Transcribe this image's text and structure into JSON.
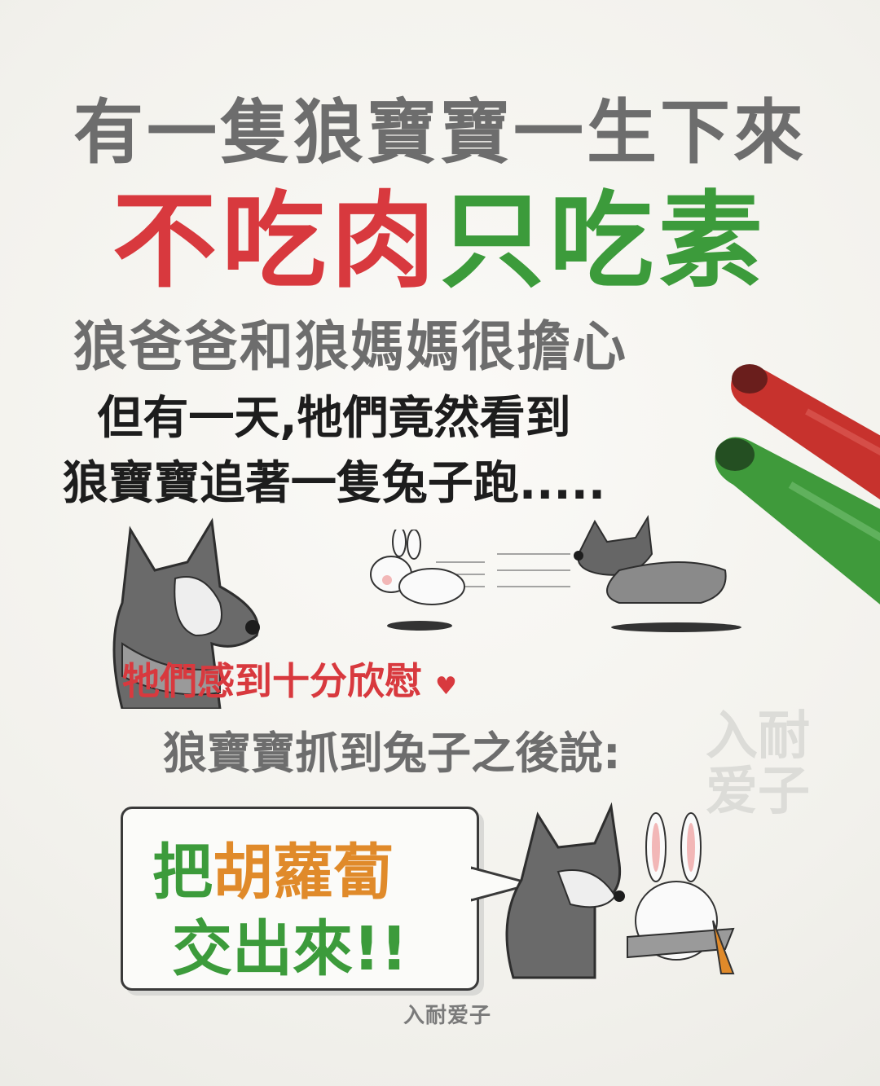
{
  "story": {
    "line1": "有一隻狼寶寶一生下來",
    "line2_red": "不吃肉",
    "line2_green": "只吃素",
    "line3": "狼爸爸和狼媽媽很擔心",
    "line4": "但有一天,牠們竟然看到",
    "line5": "狼寶寶追著一隻兔子跑.....",
    "line6": "牠們感到十分欣慰",
    "line7": "狼寶寶抓到兔子之後說:"
  },
  "bubble": {
    "part1_green": "把",
    "part1_orange": "胡蘿蔔",
    "part2": "交出來!!"
  },
  "watermark": "入耐\n爱子",
  "signature": "入耐爱子",
  "colors": {
    "gray": "#6d6d6d",
    "red": "#d8393e",
    "green": "#3c9b3b",
    "orange": "#e08a2a"
  },
  "icons": [
    "red-marker-icon",
    "green-marker-icon",
    "heart-icon",
    "wolf-hug-icon",
    "rabbit-run-icon",
    "wolf-run-icon",
    "wolf-rabbit-icon"
  ]
}
